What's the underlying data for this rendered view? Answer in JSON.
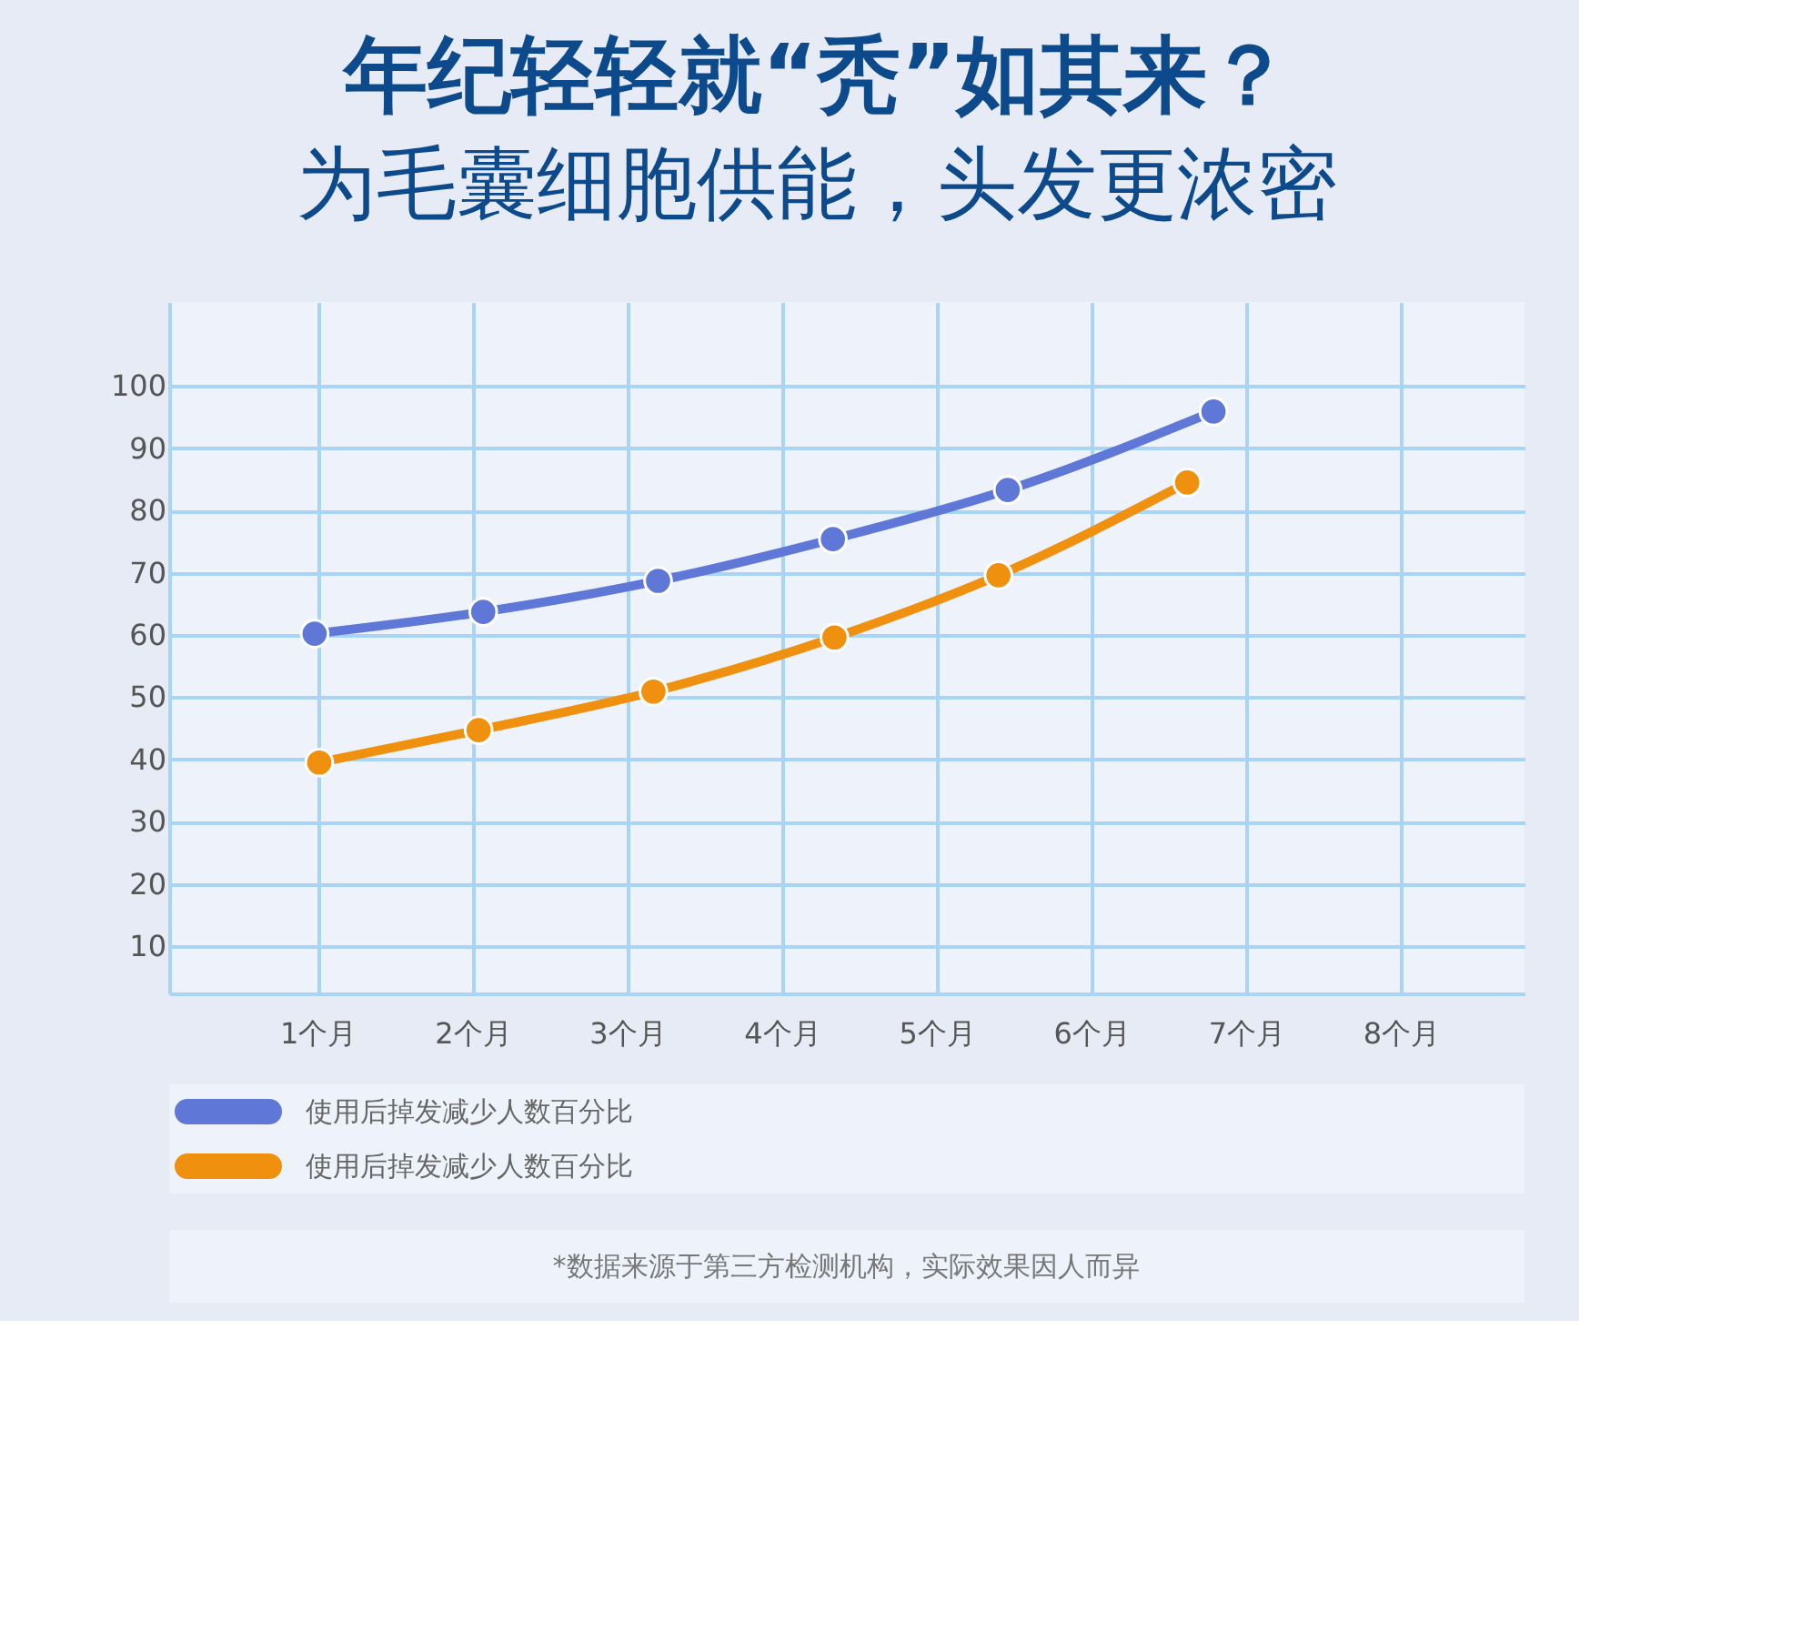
{
  "chart_data": {
    "type": "line",
    "title": "年纪轻轻就“秃”如其来？",
    "subtitle": "为毛囊细胞供能，头发更浓密",
    "xlim": [
      0.04,
      8.8
    ],
    "xticks": [
      {
        "value": 1,
        "label": "1个月"
      },
      {
        "value": 2,
        "label": "2个月"
      },
      {
        "value": 3,
        "label": "3个月"
      },
      {
        "value": 4,
        "label": "4个月"
      },
      {
        "value": 5,
        "label": "5个月"
      },
      {
        "value": 6,
        "label": "6个月"
      },
      {
        "value": 7,
        "label": "7个月"
      },
      {
        "value": 8,
        "label": "8个月"
      }
    ],
    "ylim": [
      2.4,
      113.5
    ],
    "yticks": [
      10,
      20,
      30,
      40,
      50,
      60,
      70,
      80,
      90,
      100
    ],
    "series": [
      {
        "name": "使用后掉发减少人数百分比",
        "color": "#5f78d8",
        "x": [
          0.98,
          2.07,
          3.2,
          4.33,
          5.46,
          6.79
        ],
        "values": [
          60.2,
          63.7,
          68.7,
          75.4,
          83.3,
          95.9
        ]
      },
      {
        "name": "使用后掉发减少人数百分比",
        "color": "#f0900f",
        "x": [
          1.01,
          2.04,
          3.17,
          4.34,
          5.4,
          6.62
        ],
        "values": [
          39.5,
          44.7,
          50.9,
          59.6,
          69.6,
          84.5
        ]
      }
    ],
    "grid": true,
    "legend": "bottom left",
    "marker": "circle",
    "line_style": "solid",
    "annotations": [
      "*数据来源于第三方检测机构，实际效果因人而异"
    ]
  }
}
